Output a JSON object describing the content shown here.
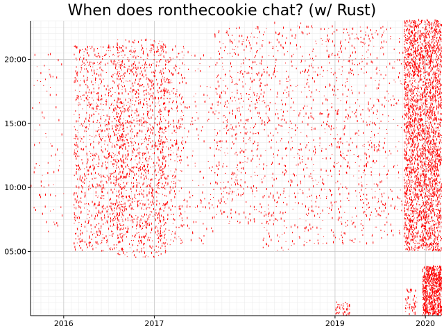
{
  "chart_data": {
    "type": "scatter",
    "title": "When does ronthecookie chat? (w/ Rust)",
    "xlabel": "",
    "ylabel": "",
    "x_axis": {
      "type": "date",
      "range": [
        "2015-08-20",
        "2020-03-05"
      ],
      "ticks": [
        {
          "label": "2016",
          "value": "2016-01-01"
        },
        {
          "label": "2017",
          "value": "2017-01-01"
        },
        {
          "label": "2019",
          "value": "2019-01-01"
        },
        {
          "label": "2020",
          "value": "2020-01-01"
        }
      ]
    },
    "y_axis": {
      "type": "time_of_day_hours",
      "range": [
        0,
        23
      ],
      "ticks": [
        {
          "label": "05:00",
          "value": 5
        },
        {
          "label": "10:00",
          "value": 10
        },
        {
          "label": "15:00",
          "value": 15
        },
        {
          "label": "20:00",
          "value": 20
        }
      ]
    },
    "grid": true,
    "marker_color": "#ff0000",
    "density_clusters": [
      {
        "start": "2015-08-20",
        "end": "2015-12-31",
        "hour_min": 6.0,
        "hour_max": 20.5,
        "density": 0.6
      },
      {
        "start": "2016-02-10",
        "end": "2016-08-31",
        "hour_min": 5.0,
        "hour_max": 21.0,
        "density": 5.0
      },
      {
        "start": "2016-08-01",
        "end": "2017-02-15",
        "hour_min": 4.5,
        "hour_max": 21.5,
        "density": 6.0
      },
      {
        "start": "2017-01-15",
        "end": "2017-04-30",
        "hour_min": 5.5,
        "hour_max": 21.0,
        "density": 3.5
      },
      {
        "start": "2017-04-30",
        "end": "2017-08-31",
        "hour_min": 5.5,
        "hour_max": 20.5,
        "density": 1.0
      },
      {
        "start": "2017-08-31",
        "end": "2018-03-15",
        "hour_min": 7.0,
        "hour_max": 22.5,
        "density": 2.5
      },
      {
        "start": "2018-03-15",
        "end": "2018-08-31",
        "hour_min": 5.0,
        "hour_max": 22.8,
        "density": 2.0
      },
      {
        "start": "2018-08-31",
        "end": "2019-07-31",
        "hour_min": 5.5,
        "hour_max": 22.5,
        "density": 2.2
      },
      {
        "start": "2019-07-31",
        "end": "2019-10-01",
        "hour_min": 6.0,
        "hour_max": 22.5,
        "density": 1.2
      },
      {
        "start": "2019-10-05",
        "end": "2020-03-05",
        "hour_min": 5.0,
        "hour_max": 23.0,
        "density": 20.0
      },
      {
        "start": "2019-12-20",
        "end": "2020-03-05",
        "hour_min": 0.0,
        "hour_max": 3.8,
        "density": 10.0
      },
      {
        "start": "2019-01-01",
        "end": "2019-02-28",
        "hour_min": 0.0,
        "hour_max": 1.0,
        "density": 0.8
      },
      {
        "start": "2019-10-10",
        "end": "2019-11-30",
        "hour_min": 0.0,
        "hour_max": 2.0,
        "density": 1.0
      }
    ]
  }
}
